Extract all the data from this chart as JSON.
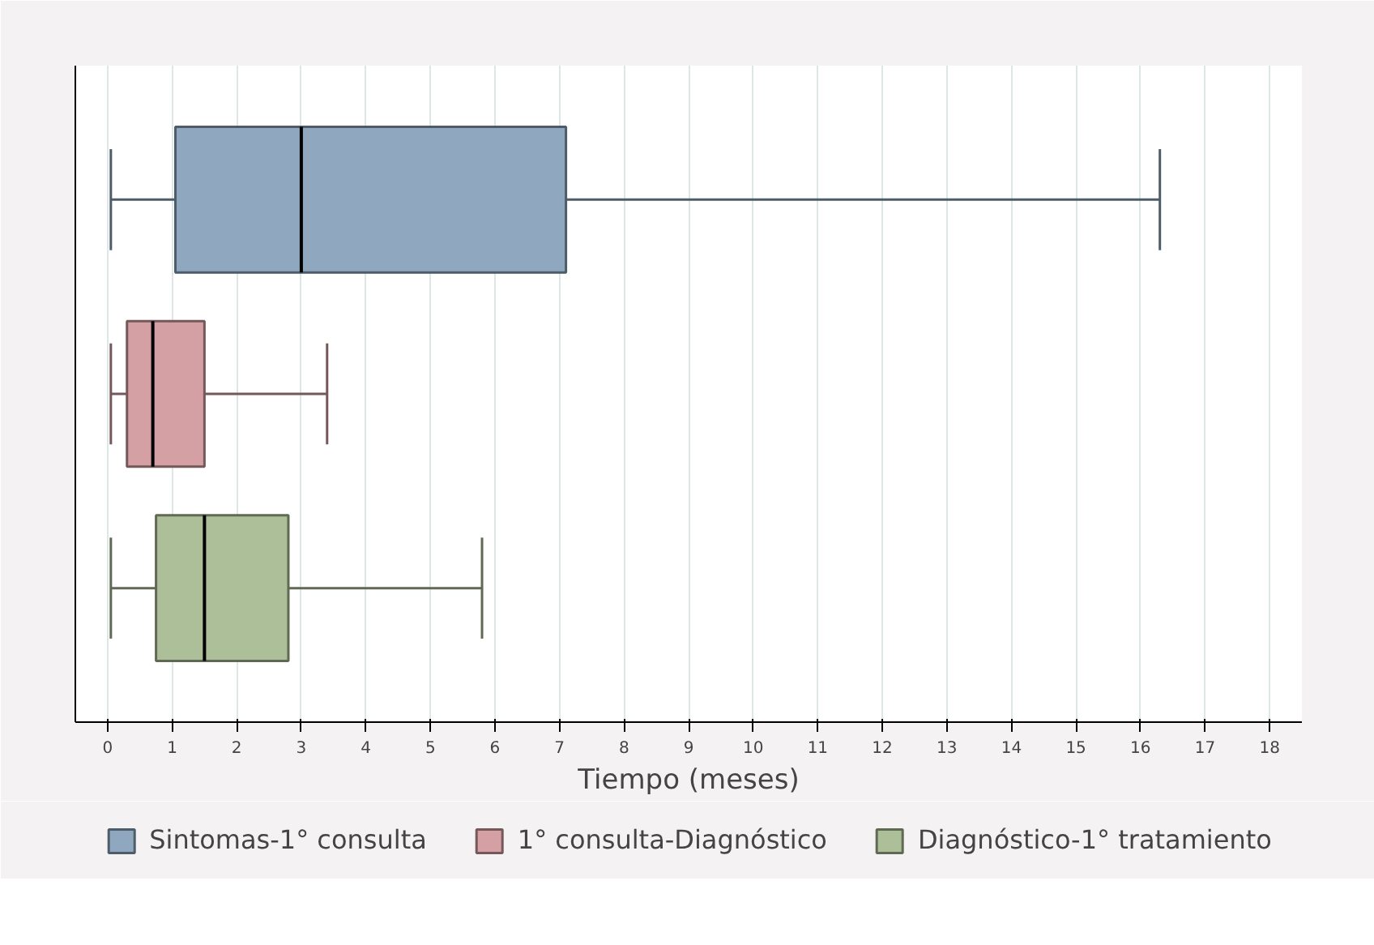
{
  "chart_data": {
    "type": "box",
    "orientation": "horizontal",
    "xlabel": "Tiempo (meses)",
    "categories": [
      null,
      null,
      null
    ],
    "xlim": [
      -0.5,
      18.5
    ],
    "xticks": [
      0,
      1,
      2,
      3,
      4,
      5,
      6,
      7,
      8,
      9,
      10,
      11,
      12,
      13,
      14,
      15,
      16,
      17,
      18
    ],
    "grid": "x",
    "legend": "bottom",
    "tick_labels": "x",
    "series": [
      {
        "name": "Sintomas-1° consulta",
        "color": "#8fa8c0",
        "boxes": [
          {
            "low": 0.05,
            "q1": 1.05,
            "median": 3.0,
            "q3": 7.1,
            "high": 16.3
          },
          null,
          null
        ]
      },
      {
        "name": "1° consulta-Diagnóstico",
        "color": "#d4a0a4",
        "boxes": [
          null,
          {
            "low": 0.05,
            "q1": 0.3,
            "median": 0.7,
            "q3": 1.5,
            "high": 3.4
          },
          null
        ]
      },
      {
        "name": "Diagnóstico-1° tratamiento",
        "color": "#adbf98",
        "boxes": [
          null,
          null,
          {
            "low": 0.05,
            "q1": 0.75,
            "median": 1.5,
            "q3": 2.8,
            "high": 5.8
          }
        ]
      }
    ]
  }
}
